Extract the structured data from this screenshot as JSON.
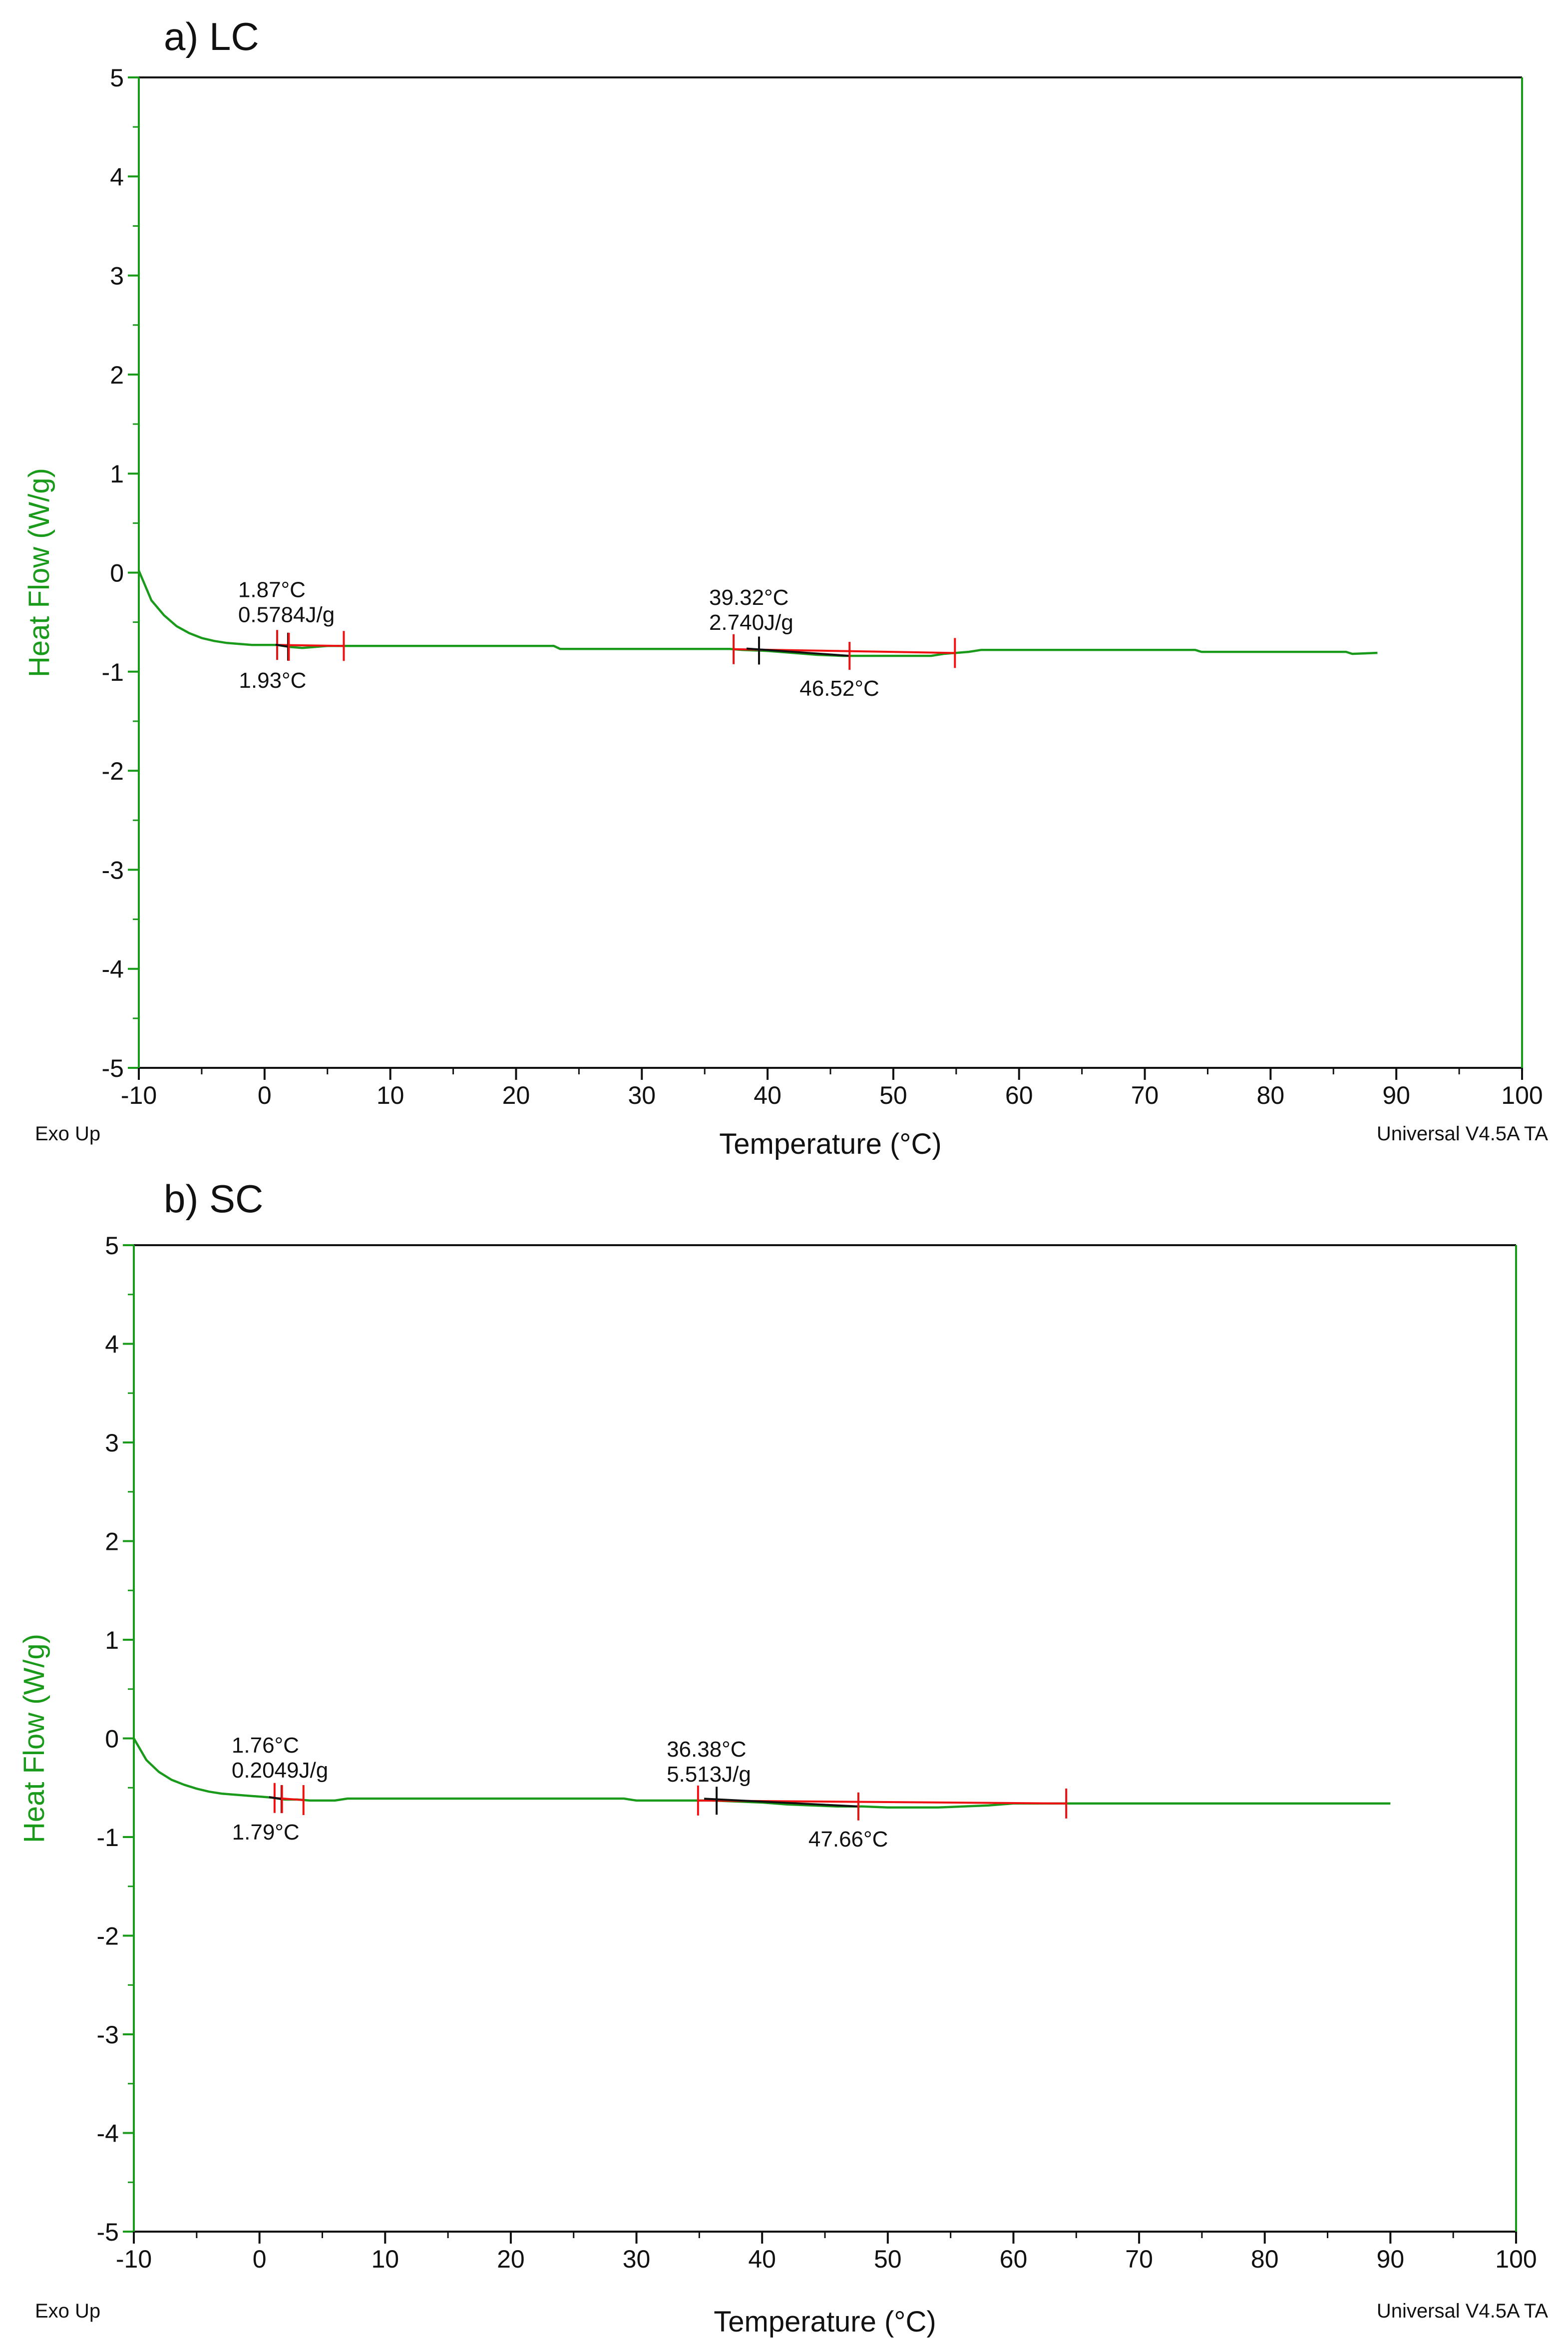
{
  "chart_data": [
    {
      "type": "line",
      "panel_label": "a) LC",
      "xlabel": "Temperature (°C)",
      "ylabel": "Heat Flow (W/g)",
      "xlim": [
        -10,
        100
      ],
      "ylim": [
        -5,
        5
      ],
      "x_ticks": [
        "-10",
        "0",
        "10",
        "20",
        "30",
        "40",
        "50",
        "60",
        "70",
        "80",
        "90",
        "100"
      ],
      "y_ticks": [
        "5",
        "4",
        "3",
        "2",
        "1",
        "0",
        "-1",
        "-2",
        "-3",
        "-4",
        "-5"
      ],
      "footer_left": "Exo Up",
      "footer_right": "Universal V4.5A TA",
      "series": [
        {
          "name": "Heat Flow",
          "x": [
            -10,
            -9,
            -8,
            -7,
            -6,
            -5,
            -4,
            -3,
            -2,
            -1,
            0,
            1,
            2,
            3,
            4,
            5,
            6,
            10,
            15,
            20,
            23,
            23.5,
            30,
            37,
            38,
            40,
            42,
            44,
            46,
            48,
            50,
            52,
            53,
            54,
            55,
            56,
            57,
            65,
            74,
            74.5,
            80,
            85,
            86,
            86.5,
            88.5
          ],
          "y": [
            0.02,
            -0.28,
            -0.43,
            -0.54,
            -0.61,
            -0.66,
            -0.69,
            -0.71,
            -0.72,
            -0.73,
            -0.73,
            -0.73,
            -0.75,
            -0.76,
            -0.75,
            -0.74,
            -0.74,
            -0.74,
            -0.74,
            -0.74,
            -0.74,
            -0.77,
            -0.77,
            -0.77,
            -0.78,
            -0.79,
            -0.81,
            -0.83,
            -0.84,
            -0.84,
            -0.84,
            -0.84,
            -0.84,
            -0.82,
            -0.81,
            -0.8,
            -0.78,
            -0.78,
            -0.78,
            -0.8,
            -0.8,
            -0.8,
            -0.8,
            -0.82,
            -0.81
          ]
        }
      ],
      "annotations": [
        {
          "x": 1.87,
          "y": -0.7,
          "lines": [
            "1.87°C",
            "0.5784J/g"
          ],
          "position": "above"
        },
        {
          "x": 1.93,
          "y": -0.76,
          "lines": [
            "1.93°C"
          ],
          "position": "below"
        },
        {
          "x": 39.32,
          "y": -0.78,
          "lines": [
            "39.32°C",
            "2.740J/g"
          ],
          "position": "above"
        },
        {
          "x": 46.52,
          "y": -0.84,
          "lines": [
            "46.52°C"
          ],
          "position": "below"
        }
      ],
      "limit_marks": [
        1.0,
        6.3,
        37.3,
        54.9
      ],
      "onset_marks": [
        1.87,
        39.32
      ],
      "peak_marks": [
        1.93,
        46.52
      ]
    },
    {
      "type": "line",
      "panel_label": "b) SC",
      "xlabel": "Temperature (°C)",
      "ylabel": "Heat Flow (W/g)",
      "xlim": [
        -10,
        100
      ],
      "ylim": [
        -5,
        5
      ],
      "x_ticks": [
        "-10",
        "0",
        "10",
        "20",
        "30",
        "40",
        "50",
        "60",
        "70",
        "80",
        "90",
        "100"
      ],
      "y_ticks": [
        "5",
        "4",
        "3",
        "2",
        "1",
        "0",
        "-1",
        "-2",
        "-3",
        "-4",
        "-5"
      ],
      "footer_left": "Exo Up",
      "footer_right": "Universal V4.5A TA",
      "series": [
        {
          "name": "Heat Flow",
          "x": [
            -10,
            -9,
            -8,
            -7,
            -6,
            -5,
            -4,
            -3,
            -2,
            -1,
            0,
            1,
            2,
            3,
            4,
            5,
            6,
            7,
            15,
            20,
            29,
            30,
            35,
            36,
            38,
            40,
            42,
            44,
            46,
            48,
            50,
            52,
            54,
            56,
            58,
            59,
            60,
            65,
            70,
            75,
            80,
            85,
            90
          ],
          "y": [
            0.0,
            -0.22,
            -0.34,
            -0.42,
            -0.47,
            -0.51,
            -0.54,
            -0.56,
            -0.57,
            -0.58,
            -0.59,
            -0.6,
            -0.62,
            -0.62,
            -0.63,
            -0.63,
            -0.63,
            -0.61,
            -0.61,
            -0.61,
            -0.61,
            -0.63,
            -0.63,
            -0.63,
            -0.64,
            -0.65,
            -0.67,
            -0.68,
            -0.69,
            -0.69,
            -0.7,
            -0.7,
            -0.7,
            -0.69,
            -0.68,
            -0.67,
            -0.66,
            -0.66,
            -0.66,
            -0.66,
            -0.66,
            -0.66,
            -0.66
          ]
        }
      ],
      "annotations": [
        {
          "x": 1.76,
          "y": -0.6,
          "lines": [
            "1.76°C",
            "0.2049J/g"
          ],
          "position": "above"
        },
        {
          "x": 1.79,
          "y": -0.62,
          "lines": [
            "1.79°C"
          ],
          "position": "below"
        },
        {
          "x": 36.38,
          "y": -0.64,
          "lines": [
            "36.38°C",
            "5.513J/g"
          ],
          "position": "above"
        },
        {
          "x": 47.66,
          "y": -0.69,
          "lines": [
            "47.66°C"
          ],
          "position": "below"
        }
      ],
      "limit_marks": [
        1.2,
        3.5,
        34.9,
        64.2
      ],
      "onset_marks": [
        1.76,
        36.38
      ],
      "peak_marks": [
        1.79,
        47.66
      ]
    }
  ]
}
